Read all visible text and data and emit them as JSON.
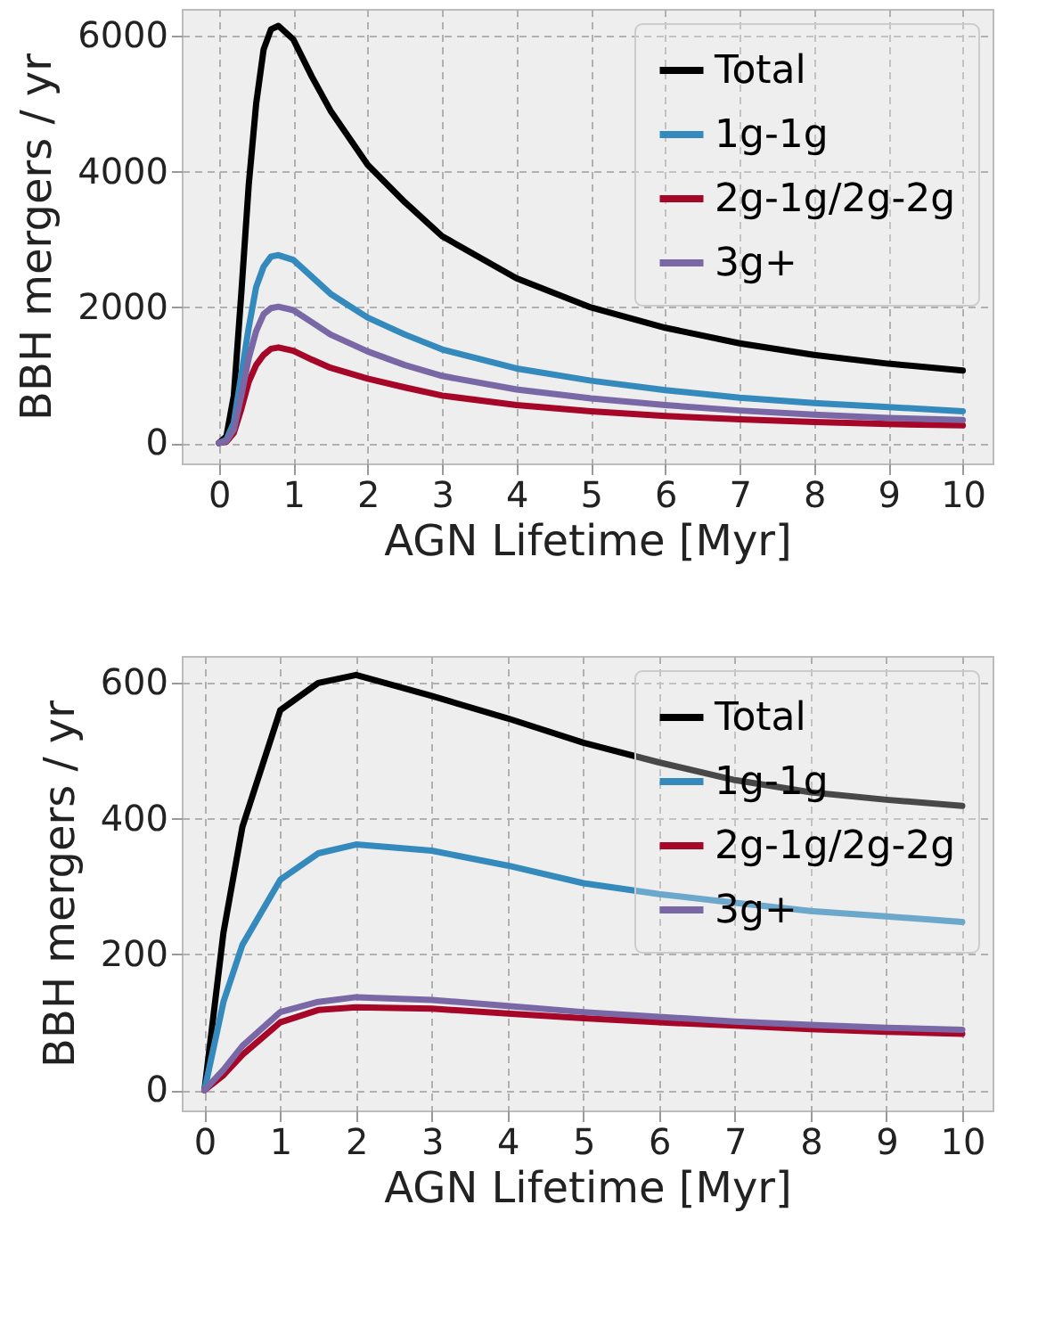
{
  "chart_data": [
    {
      "type": "line",
      "xlabel": "AGN Lifetime [Myr]",
      "ylabel": "BBH mergers / yr",
      "x": [
        0,
        0.1,
        0.2,
        0.3,
        0.4,
        0.5,
        0.6,
        0.7,
        0.8,
        1.0,
        1.25,
        1.5,
        2,
        2.5,
        3,
        4,
        5,
        6,
        7,
        8,
        9,
        10
      ],
      "xlim": [
        -0.5,
        10.4
      ],
      "xticks": [
        0,
        1,
        2,
        3,
        4,
        5,
        6,
        7,
        8,
        9,
        10
      ],
      "ylim": [
        -300,
        6400
      ],
      "yticks": [
        0,
        2000,
        4000,
        6000
      ],
      "grid": true,
      "legend": "top right",
      "line_style": "solid",
      "series": [
        {
          "name": "Total",
          "color": "#000000",
          "values": [
            0,
            100,
            700,
            2200,
            3800,
            5000,
            5800,
            6100,
            6150,
            5950,
            5400,
            4900,
            4100,
            3550,
            3050,
            2430,
            2000,
            1700,
            1470,
            1300,
            1170,
            1070
          ]
        },
        {
          "name": "1g-1g",
          "color": "#348abd",
          "values": [
            0,
            50,
            300,
            1000,
            1700,
            2300,
            2600,
            2750,
            2770,
            2700,
            2450,
            2200,
            1850,
            1600,
            1380,
            1100,
            920,
            780,
            670,
            590,
            530,
            470
          ]
        },
        {
          "name": "2g-1g/2g-2g",
          "color": "#a60628",
          "values": [
            0,
            20,
            150,
            500,
            900,
            1150,
            1300,
            1390,
            1410,
            1360,
            1230,
            1110,
            950,
            820,
            700,
            560,
            470,
            400,
            350,
            310,
            280,
            260
          ]
        },
        {
          "name": "3g+",
          "color": "#7a68a6",
          "values": [
            0,
            30,
            200,
            700,
            1250,
            1650,
            1900,
            1990,
            2010,
            1960,
            1780,
            1600,
            1350,
            1150,
            990,
            790,
            660,
            560,
            480,
            420,
            370,
            340
          ]
        }
      ]
    },
    {
      "type": "line",
      "xlabel": "AGN Lifetime [Myr]",
      "ylabel": "BBH mergers / yr",
      "x": [
        0,
        0.25,
        0.5,
        1,
        1.5,
        2,
        3,
        4,
        5,
        6,
        7,
        8,
        9,
        10
      ],
      "xlim": [
        -0.3,
        10.4
      ],
      "xticks": [
        0,
        1,
        2,
        3,
        4,
        5,
        6,
        7,
        8,
        9,
        10
      ],
      "ylim": [
        -30,
        640
      ],
      "yticks": [
        0,
        200,
        400,
        600
      ],
      "grid": true,
      "legend": "top right",
      "line_style": "solid",
      "series": [
        {
          "name": "Total",
          "color": "#000000",
          "values": [
            0,
            232,
            388,
            560,
            600,
            612,
            581,
            548,
            512,
            483,
            457,
            439,
            428,
            419
          ]
        },
        {
          "name": "1g-1g",
          "color": "#348abd",
          "values": [
            0,
            130,
            214,
            310,
            349,
            362,
            353,
            331,
            305,
            289,
            276,
            264,
            256,
            248
          ]
        },
        {
          "name": "2g-1g/2g-2g",
          "color": "#a60628",
          "values": [
            0,
            22,
            52,
            100,
            118,
            122,
            120,
            113,
            106,
            100,
            95,
            90,
            86,
            83
          ]
        },
        {
          "name": "3g+",
          "color": "#7a68a6",
          "values": [
            0,
            30,
            65,
            115,
            130,
            137,
            133,
            124,
            115,
            108,
            101,
            96,
            92,
            89
          ]
        }
      ]
    }
  ]
}
